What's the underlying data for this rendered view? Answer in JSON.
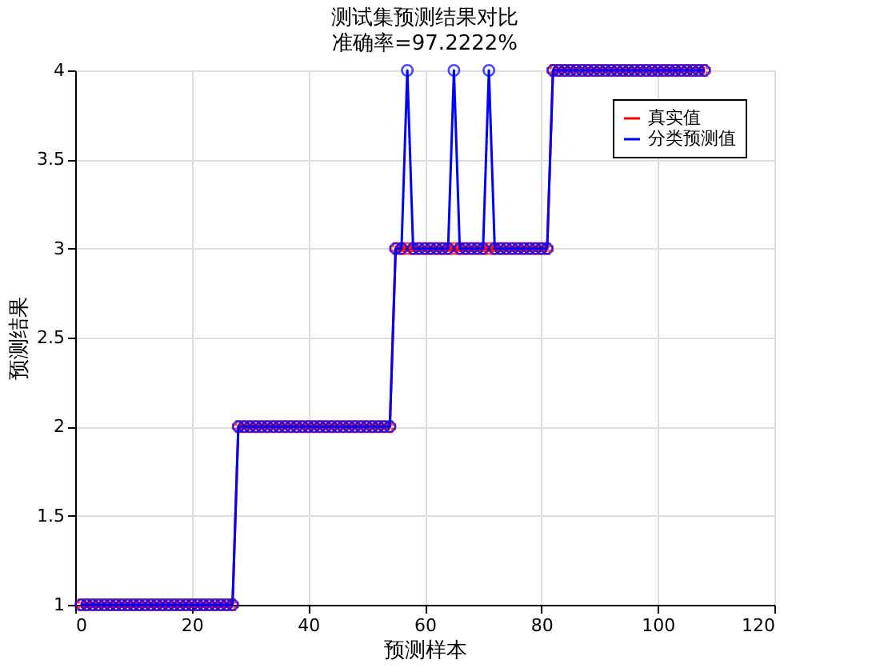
{
  "chart_data": {
    "type": "line",
    "title": "测试集预测结果对比",
    "subtitle": "准确率=97.2222%",
    "xlabel": "预测样本",
    "ylabel": "预测结果",
    "x": [
      1,
      2,
      3,
      4,
      5,
      6,
      7,
      8,
      9,
      10,
      11,
      12,
      13,
      14,
      15,
      16,
      17,
      18,
      19,
      20,
      21,
      22,
      23,
      24,
      25,
      26,
      27,
      28,
      29,
      30,
      31,
      32,
      33,
      34,
      35,
      36,
      37,
      38,
      39,
      40,
      41,
      42,
      43,
      44,
      45,
      46,
      47,
      48,
      49,
      50,
      51,
      52,
      53,
      54,
      55,
      56,
      57,
      58,
      59,
      60,
      61,
      62,
      63,
      64,
      65,
      66,
      67,
      68,
      69,
      70,
      71,
      72,
      73,
      74,
      75,
      76,
      77,
      78,
      79,
      80,
      81,
      82,
      83,
      84,
      85,
      86,
      87,
      88,
      89,
      90,
      91,
      92,
      93,
      94,
      95,
      96,
      97,
      98,
      99,
      100,
      101,
      102,
      103,
      104,
      105,
      106,
      107,
      108
    ],
    "series": [
      {
        "name": "真实值",
        "color": "#ff0000",
        "marker": "cross",
        "values": [
          1,
          1,
          1,
          1,
          1,
          1,
          1,
          1,
          1,
          1,
          1,
          1,
          1,
          1,
          1,
          1,
          1,
          1,
          1,
          1,
          1,
          1,
          1,
          1,
          1,
          1,
          1,
          2,
          2,
          2,
          2,
          2,
          2,
          2,
          2,
          2,
          2,
          2,
          2,
          2,
          2,
          2,
          2,
          2,
          2,
          2,
          2,
          2,
          2,
          2,
          2,
          2,
          2,
          2,
          3,
          3,
          3,
          3,
          3,
          3,
          3,
          3,
          3,
          3,
          3,
          3,
          3,
          3,
          3,
          3,
          3,
          3,
          3,
          3,
          3,
          3,
          3,
          3,
          3,
          3,
          3,
          4,
          4,
          4,
          4,
          4,
          4,
          4,
          4,
          4,
          4,
          4,
          4,
          4,
          4,
          4,
          4,
          4,
          4,
          4,
          4,
          4,
          4,
          4,
          4,
          4,
          4,
          4
        ]
      },
      {
        "name": "分类预测值",
        "color": "#0000ff",
        "marker": "circle",
        "values": [
          1,
          1,
          1,
          1,
          1,
          1,
          1,
          1,
          1,
          1,
          1,
          1,
          1,
          1,
          1,
          1,
          1,
          1,
          1,
          1,
          1,
          1,
          1,
          1,
          1,
          1,
          1,
          2,
          2,
          2,
          2,
          2,
          2,
          2,
          2,
          2,
          2,
          2,
          2,
          2,
          2,
          2,
          2,
          2,
          2,
          2,
          2,
          2,
          2,
          2,
          2,
          2,
          2,
          2,
          3,
          3,
          4,
          3,
          3,
          3,
          3,
          3,
          3,
          3,
          4,
          3,
          3,
          3,
          3,
          3,
          4,
          3,
          3,
          3,
          3,
          3,
          3,
          3,
          3,
          3,
          3,
          4,
          4,
          4,
          4,
          4,
          4,
          4,
          4,
          4,
          4,
          4,
          4,
          4,
          4,
          4,
          4,
          4,
          4,
          4,
          4,
          4,
          4,
          4,
          4,
          4,
          4,
          4
        ]
      }
    ],
    "xlim": [
      0,
      120
    ],
    "xticks": [
      0,
      20,
      40,
      60,
      80,
      100,
      120
    ],
    "ylim": [
      1,
      4
    ],
    "yticks": [
      1,
      1.5,
      2,
      2.5,
      3,
      3.5,
      4
    ],
    "grid": true,
    "legend": "top right"
  }
}
